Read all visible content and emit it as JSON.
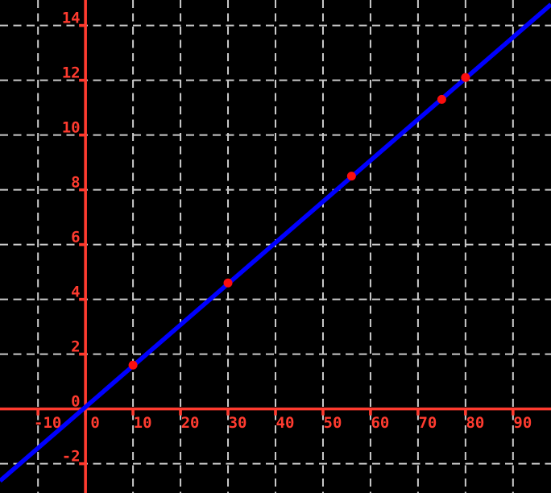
{
  "chart_data": {
    "type": "scatter",
    "title": "",
    "xlabel": "",
    "ylabel": "",
    "xlim": [
      -18,
      98
    ],
    "ylim": [
      -3.07,
      14.93
    ],
    "xticks": [
      -10,
      0,
      10,
      20,
      30,
      40,
      50,
      60,
      70,
      80,
      90
    ],
    "yticks": [
      -2,
      0,
      2,
      4,
      6,
      8,
      10,
      12,
      14
    ],
    "grid": "dashed",
    "legend_position": "none",
    "line": {
      "name": "linear-fit-line",
      "equation": "y = 0.15x + 0.07",
      "slope": 0.15,
      "intercept": 0.07,
      "color": "#0000ff"
    },
    "points": {
      "name": "data-points",
      "x": [
        10,
        30,
        56,
        75,
        80
      ],
      "y": [
        1.6,
        4.6,
        8.5,
        11.3,
        12.1
      ],
      "color": "#fb0e0e"
    },
    "colors": {
      "background": "#000000",
      "axis": "#ff3b2f",
      "tick_labels": "#ff3b2f",
      "grid": "#cbcbcb"
    }
  }
}
